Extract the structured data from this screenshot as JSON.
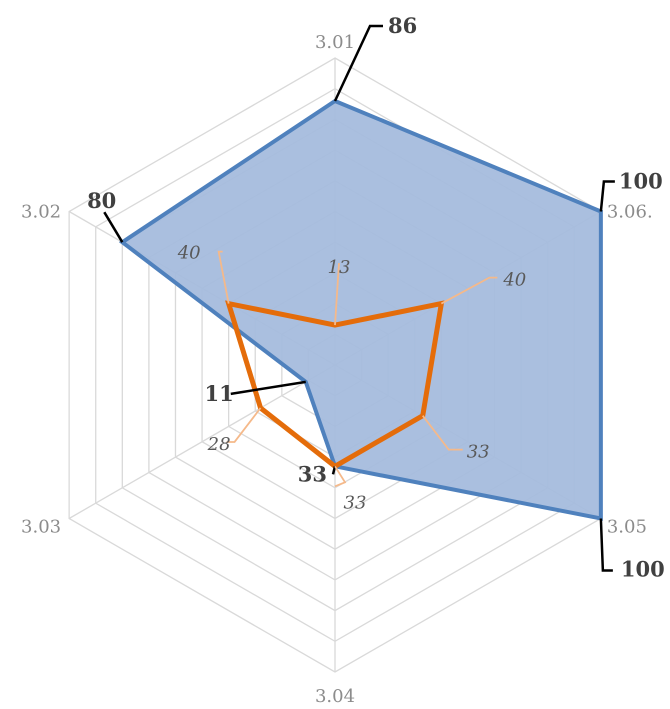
{
  "chart_data": {
    "type": "radar",
    "categories": [
      "3.01",
      "3.06.",
      "3.05",
      "3.04",
      "3.03",
      "3.02"
    ],
    "rlim": [
      0,
      100
    ],
    "gridlines": 10,
    "series": [
      {
        "values": [
          86,
          100,
          100,
          33,
          11,
          80
        ],
        "color": "#4f81bd",
        "fill": "#a5bcdd"
      },
      {
        "values": [
          13,
          40,
          33,
          33,
          28,
          40
        ],
        "color": "#e46c0a"
      }
    ]
  }
}
